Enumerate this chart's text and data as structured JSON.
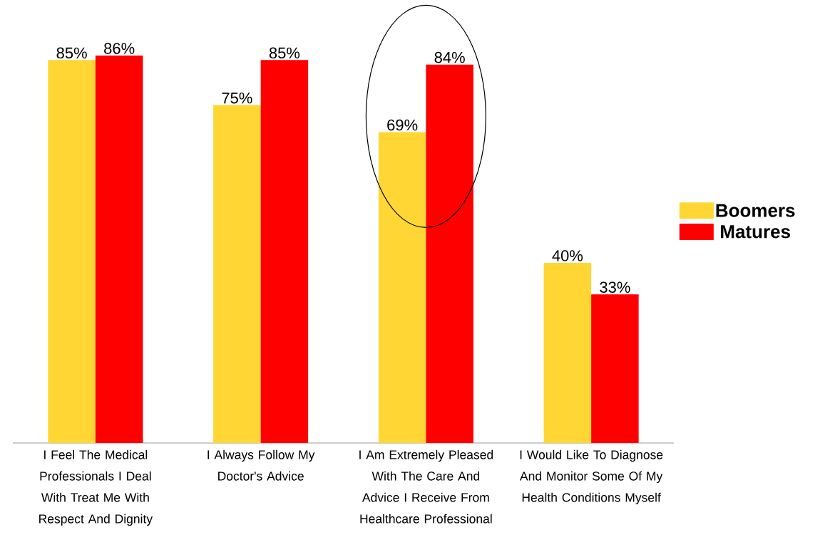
{
  "chart_data": {
    "type": "bar",
    "categories": [
      "I Feel The Medical Professionals I Deal With Treat Me With Respect And Dignity",
      "I Always Follow My Doctor's Advice",
      "I Am Extremely Pleased With The Care And Advice I Receive From Healthcare Professional",
      "I Would Like To Diagnose And Monitor Some Of My Health Conditions Myself"
    ],
    "series": [
      {
        "name": "Boomers",
        "color": "#ffd633",
        "values": [
          85,
          75,
          69,
          40
        ],
        "value_labels": [
          "85%",
          "75%",
          "69%",
          "40%"
        ]
      },
      {
        "name": "Matures",
        "color": "#ff0000",
        "values": [
          86,
          85,
          84,
          33
        ],
        "value_labels": [
          "86%",
          "85%",
          "84%",
          "33%"
        ]
      }
    ],
    "legend": "right"
  }
}
